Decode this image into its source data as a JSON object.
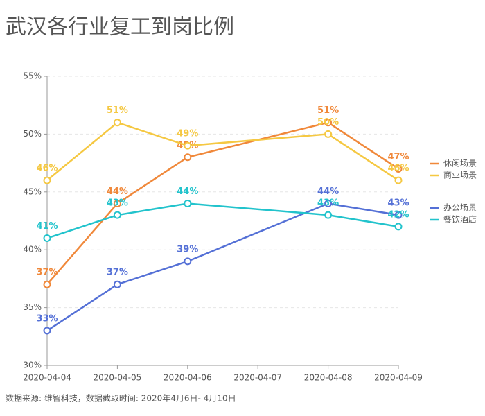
{
  "chart_data": {
    "type": "line",
    "title": "武汉各行业复工到岗比例",
    "source": "数据来源: 维智科技，数据截取时间: 2020年4月6日- 4月10日",
    "x": [
      "2020-04-04",
      "2020-04-05",
      "2020-04-06",
      "2020-04-08",
      "2020-04-09"
    ],
    "xlim": [
      "2020-04-04",
      "2020-04-09"
    ],
    "xticks": [
      "2020-04-04",
      "2020-04-05",
      "2020-04-06",
      "2020-04-07",
      "2020-04-08",
      "2020-04-09"
    ],
    "ylim": [
      30,
      55
    ],
    "yticks": [
      {
        "value": 30,
        "label": "30%"
      },
      {
        "value": 35,
        "label": "35%"
      },
      {
        "value": 40,
        "label": "40%"
      },
      {
        "value": 45,
        "label": "45%"
      },
      {
        "value": 50,
        "label": "50%"
      },
      {
        "value": 55,
        "label": "55%"
      }
    ],
    "grid": true,
    "legend": "right",
    "series": [
      {
        "name": "休闲场景",
        "color": "#f0883a",
        "values": [
          37,
          44,
          48,
          51,
          47
        ],
        "value_labels": [
          "37%",
          "44%",
          "48%",
          "51%",
          "47%"
        ]
      },
      {
        "name": "商业场景",
        "color": "#f5c842",
        "values": [
          46,
          51,
          49,
          50,
          46
        ],
        "value_labels": [
          "46%",
          "51%",
          "49%",
          "50%",
          "46%"
        ]
      },
      {
        "name": "办公场景",
        "color": "#5470d6",
        "values": [
          33,
          37,
          39,
          44,
          43
        ],
        "value_labels": [
          "33%",
          "37%",
          "39%",
          "44%",
          "43%"
        ]
      },
      {
        "name": "餐饮酒店",
        "color": "#22c3cc",
        "values": [
          41,
          43,
          44,
          43,
          42
        ],
        "value_labels": [
          "41%",
          "43%",
          "44%",
          "43%",
          "42%"
        ]
      }
    ]
  }
}
